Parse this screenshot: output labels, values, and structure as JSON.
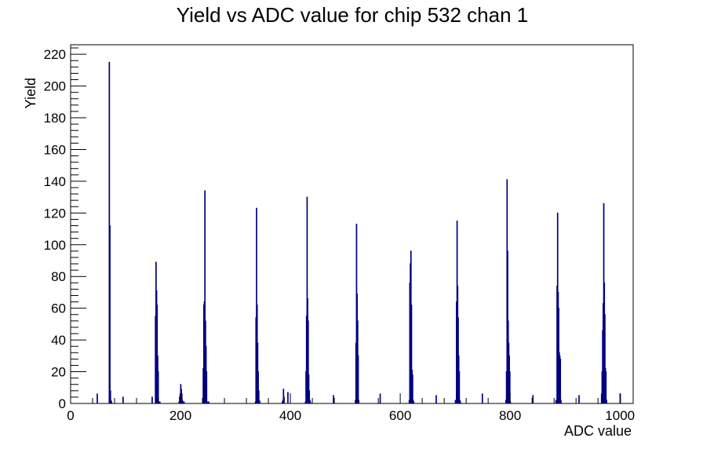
{
  "chart_data": {
    "type": "bar",
    "title": "Yield vs ADC value for chip 532 chan 1",
    "xlabel": "ADC value",
    "ylabel": "Yield",
    "xlim": [
      0,
      1024
    ],
    "ylim": [
      0,
      226
    ],
    "x_ticks": [
      0,
      200,
      400,
      600,
      800,
      1000
    ],
    "y_ticks": [
      0,
      20,
      40,
      60,
      80,
      100,
      120,
      140,
      160,
      180,
      200,
      220
    ],
    "grid": false,
    "legend": "none",
    "line_color": "#000080",
    "series": [
      {
        "x": [
          48,
          70,
          71,
          72,
          73,
          74,
          95,
          148,
          154,
          155,
          156,
          157,
          158,
          159,
          160,
          161,
          162,
          197,
          198,
          199,
          200,
          201,
          202,
          203,
          204,
          205,
          206,
          240,
          241,
          242,
          243,
          244,
          245,
          246,
          247,
          248,
          249,
          251,
          336,
          337,
          338,
          339,
          340,
          341,
          342,
          343,
          344,
          385,
          386,
          387,
          388,
          395,
          427,
          428,
          429,
          430,
          431,
          432,
          433,
          434,
          435,
          436,
          478,
          518,
          519,
          520,
          521,
          522,
          523,
          524,
          563,
          616,
          617,
          618,
          619,
          620,
          621,
          622,
          623,
          624,
          665,
          700,
          701,
          702,
          703,
          704,
          705,
          706,
          707,
          708,
          709,
          749,
          792,
          793,
          794,
          795,
          796,
          797,
          798,
          799,
          800,
          841,
          883,
          884,
          885,
          886,
          887,
          888,
          889,
          890,
          891,
          892,
          925,
          966,
          967,
          968,
          969,
          970,
          971,
          972,
          973,
          974,
          975,
          1000
        ],
        "values": [
          6,
          215,
          112,
          8,
          2,
          1,
          4,
          4,
          55,
          89,
          71,
          62,
          30,
          20,
          1,
          1,
          1,
          1,
          4,
          6,
          12,
          9,
          6,
          2,
          1,
          1,
          1,
          1,
          22,
          62,
          64,
          134,
          52,
          36,
          20,
          1,
          1,
          1,
          1,
          54,
          123,
          62,
          38,
          20,
          8,
          2,
          1,
          1,
          2,
          9,
          4,
          7,
          1,
          20,
          55,
          130,
          66,
          52,
          18,
          8,
          2,
          1,
          5,
          2,
          38,
          113,
          69,
          52,
          30,
          2,
          6,
          2,
          76,
          88,
          96,
          62,
          21,
          18,
          2,
          1,
          5,
          2,
          1,
          64,
          115,
          74,
          54,
          30,
          20,
          2,
          1,
          6,
          2,
          20,
          141,
          96,
          52,
          38,
          30,
          20,
          1,
          5,
          2,
          1,
          74,
          120,
          70,
          60,
          32,
          30,
          28,
          2,
          5,
          6,
          20,
          46,
          63,
          126,
          76,
          56,
          22,
          20,
          2,
          6
        ]
      }
    ]
  }
}
